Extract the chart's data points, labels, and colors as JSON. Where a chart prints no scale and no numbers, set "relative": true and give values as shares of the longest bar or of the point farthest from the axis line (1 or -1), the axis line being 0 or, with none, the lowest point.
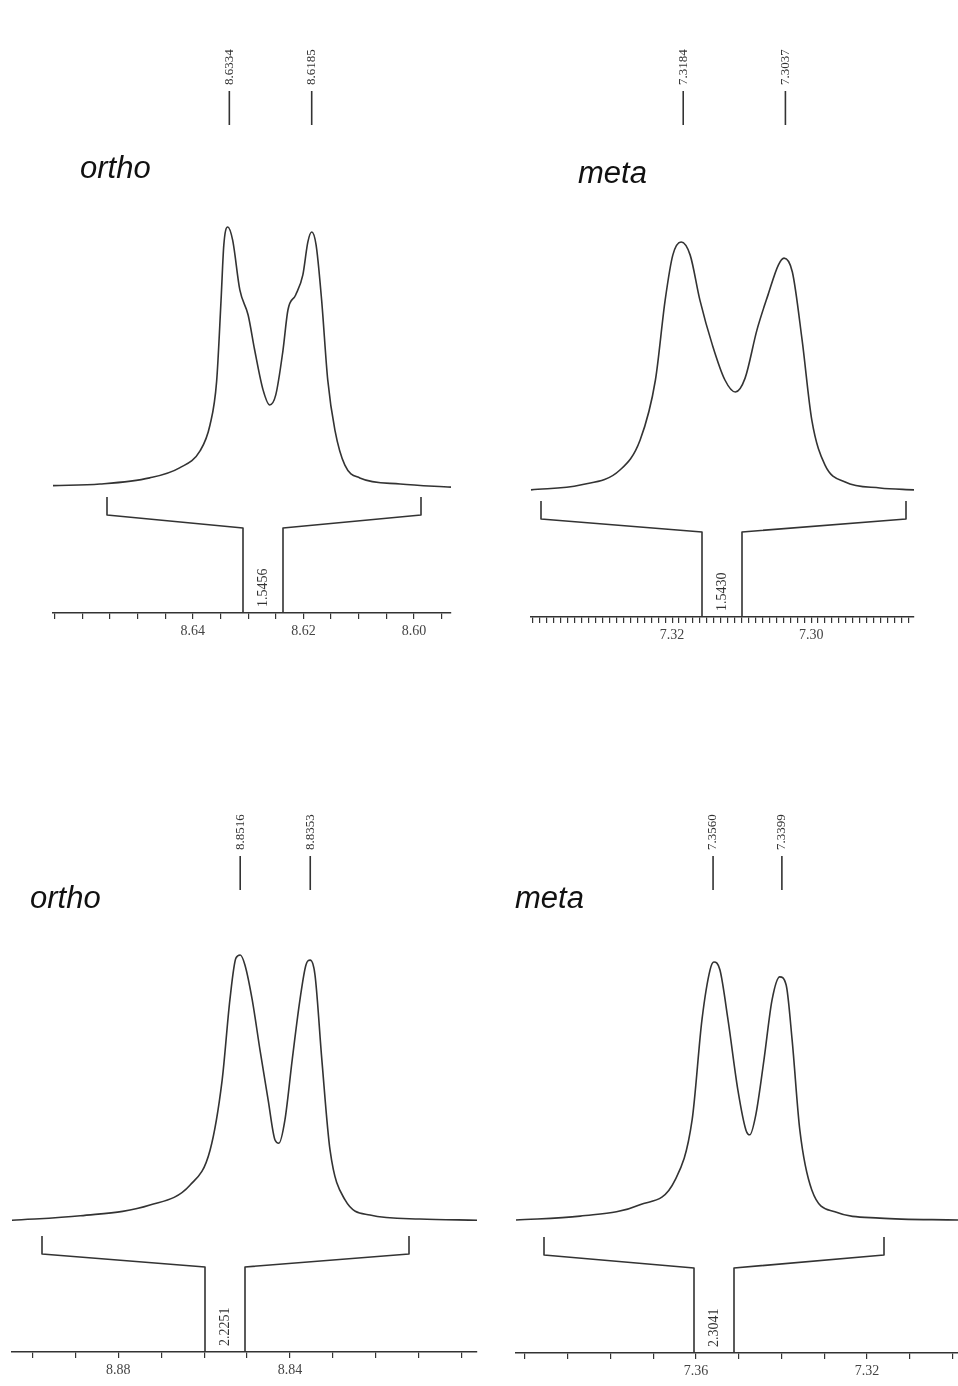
{
  "chart_data": [
    {
      "type": "line",
      "title": "ortho",
      "relative": true,
      "legend": false,
      "grid": false,
      "marker": "none",
      "series": [
        {
          "color": "#333333",
          "x": [
            8.6653,
            8.6568,
            8.6478,
            8.6424,
            8.6387,
            8.6369,
            8.6357,
            8.6349,
            8.6344,
            8.6337,
            8.6328,
            8.6315,
            8.63,
            8.6288,
            8.6273,
            8.6261,
            8.625,
            8.6237,
            8.6228,
            8.6214,
            8.6201,
            8.6192,
            8.6185,
            8.6177,
            8.6167,
            8.6156,
            8.6143,
            8.6125,
            8.6098,
            8.6025,
            8.5933
          ],
          "values": [
            0.33,
            0.334,
            0.35,
            0.376,
            0.42,
            0.487,
            0.6,
            0.81,
            0.953,
            1.0,
            0.966,
            0.837,
            0.772,
            0.68,
            0.578,
            0.539,
            0.565,
            0.68,
            0.785,
            0.824,
            0.876,
            0.961,
            0.987,
            0.953,
            0.81,
            0.604,
            0.474,
            0.383,
            0.35,
            0.334,
            0.326
          ]
        }
      ],
      "xlim": [
        8.6653,
        8.5933
      ],
      "xticks": [
        {
          "value": 8.665,
          "label": null
        },
        {
          "value": 8.66,
          "label": null
        },
        {
          "value": 8.655,
          "label": null
        },
        {
          "value": 8.65,
          "label": null
        },
        {
          "value": 8.645,
          "label": null
        },
        8.64,
        {
          "value": 8.635,
          "label": null
        },
        {
          "value": 8.63,
          "label": null
        },
        {
          "value": 8.625,
          "label": null
        },
        8.62,
        {
          "value": 8.615,
          "label": null
        },
        {
          "value": 8.61,
          "label": null
        },
        {
          "value": 8.605,
          "label": null
        },
        {
          "value": 8.6,
          "label": "8.60"
        },
        {
          "value": 8.595,
          "label": null
        }
      ],
      "annotations": [
        {
          "text": "8.6334",
          "x": 8.6334
        },
        {
          "text": "8.6185",
          "x": 8.6185
        },
        "1.5456"
      ]
    },
    {
      "type": "line",
      "title": "meta",
      "relative": true,
      "legend": false,
      "grid": false,
      "marker": "none",
      "series": [
        {
          "color": "#333333",
          "x": [
            7.3403,
            7.3332,
            7.3275,
            7.3246,
            7.3224,
            7.321,
            7.3199,
            7.3187,
            7.3174,
            7.316,
            7.3142,
            7.3124,
            7.3109,
            7.3095,
            7.3078,
            7.3062,
            7.3047,
            7.3039,
            7.3027,
            7.3013,
            7.2999,
            7.298,
            7.2951,
            7.2901,
            7.2852
          ],
          "values": [
            0.339,
            0.352,
            0.392,
            0.472,
            0.632,
            0.845,
            0.965,
            1.0,
            0.965,
            0.845,
            0.725,
            0.632,
            0.6,
            0.637,
            0.765,
            0.859,
            0.939,
            0.957,
            0.92,
            0.739,
            0.525,
            0.405,
            0.36,
            0.344,
            0.339
          ]
        }
      ],
      "xlim": [
        7.3403,
        7.2852
      ],
      "xticks": [
        {
          "value": 7.34,
          "label": null
        },
        {
          "value": 7.339,
          "label": null
        },
        {
          "value": 7.338,
          "label": null
        },
        {
          "value": 7.337,
          "label": null
        },
        {
          "value": 7.336,
          "label": null
        },
        {
          "value": 7.335,
          "label": null
        },
        {
          "value": 7.334,
          "label": null
        },
        {
          "value": 7.333,
          "label": null
        },
        {
          "value": 7.332,
          "label": null
        },
        {
          "value": 7.331,
          "label": null
        },
        {
          "value": 7.33,
          "label": null
        },
        {
          "value": 7.329,
          "label": null
        },
        {
          "value": 7.328,
          "label": null
        },
        {
          "value": 7.327,
          "label": null
        },
        {
          "value": 7.326,
          "label": null
        },
        {
          "value": 7.325,
          "label": null
        },
        {
          "value": 7.324,
          "label": null
        },
        {
          "value": 7.323,
          "label": null
        },
        {
          "value": 7.322,
          "label": null
        },
        {
          "value": 7.321,
          "label": null
        },
        7.32,
        {
          "value": 7.319,
          "label": null
        },
        {
          "value": 7.318,
          "label": null
        },
        {
          "value": 7.317,
          "label": null
        },
        {
          "value": 7.316,
          "label": null
        },
        {
          "value": 7.315,
          "label": null
        },
        {
          "value": 7.314,
          "label": null
        },
        {
          "value": 7.313,
          "label": null
        },
        {
          "value": 7.312,
          "label": null
        },
        {
          "value": 7.311,
          "label": null
        },
        {
          "value": 7.31,
          "label": null
        },
        {
          "value": 7.309,
          "label": null
        },
        {
          "value": 7.308,
          "label": null
        },
        {
          "value": 7.307,
          "label": null
        },
        {
          "value": 7.306,
          "label": null
        },
        {
          "value": 7.305,
          "label": null
        },
        {
          "value": 7.304,
          "label": null
        },
        {
          "value": 7.303,
          "label": null
        },
        {
          "value": 7.302,
          "label": null
        },
        {
          "value": 7.301,
          "label": null
        },
        {
          "value": 7.3,
          "label": "7.30"
        },
        {
          "value": 7.299,
          "label": null
        },
        {
          "value": 7.298,
          "label": null
        },
        {
          "value": 7.297,
          "label": null
        },
        {
          "value": 7.296,
          "label": null
        },
        {
          "value": 7.295,
          "label": null
        },
        {
          "value": 7.294,
          "label": null
        },
        {
          "value": 7.293,
          "label": null
        },
        {
          "value": 7.292,
          "label": null
        },
        {
          "value": 7.291,
          "label": null
        },
        {
          "value": 7.29,
          "label": null
        },
        {
          "value": 7.289,
          "label": null
        },
        {
          "value": 7.288,
          "label": null
        },
        {
          "value": 7.287,
          "label": null
        },
        {
          "value": 7.286,
          "label": null
        }
      ],
      "annotations": [
        {
          "text": "7.3184",
          "x": 7.3184
        },
        {
          "text": "7.3037",
          "x": 7.3037
        },
        "1.5430"
      ]
    },
    {
      "type": "line",
      "title": "ortho",
      "relative": true,
      "legend": false,
      "grid": false,
      "marker": "none",
      "series": [
        {
          "color": "#333333",
          "x": [
            8.9047,
            8.8888,
            8.8726,
            8.8633,
            8.8586,
            8.8558,
            8.854,
            8.8526,
            8.8516,
            8.8505,
            8.8488,
            8.847,
            8.8451,
            8.8435,
            8.8426,
            8.8412,
            8.8395,
            8.8377,
            8.8363,
            8.8353,
            8.8342,
            8.8326,
            8.8307,
            8.8272,
            8.8214,
            8.8098,
            8.7965
          ],
          "values": [
            0.332,
            0.343,
            0.37,
            0.42,
            0.509,
            0.685,
            0.887,
            0.992,
            1.0,
            0.975,
            0.887,
            0.761,
            0.635,
            0.534,
            0.526,
            0.584,
            0.736,
            0.887,
            0.975,
            0.987,
            0.95,
            0.736,
            0.509,
            0.383,
            0.345,
            0.335,
            0.332
          ]
        }
      ],
      "xlim": [
        8.9047,
        8.7965
      ],
      "xticks": [
        {
          "value": 8.9,
          "label": null
        },
        {
          "value": 8.89,
          "label": null
        },
        8.88,
        {
          "value": 8.87,
          "label": null
        },
        {
          "value": 8.86,
          "label": null
        },
        {
          "value": 8.85,
          "label": null
        },
        8.84,
        {
          "value": 8.83,
          "label": null
        },
        {
          "value": 8.82,
          "label": null
        },
        {
          "value": 8.81,
          "label": null
        },
        {
          "value": 8.8,
          "label": null
        }
      ],
      "annotations": [
        {
          "text": "8.8516",
          "x": 8.8516
        },
        {
          "text": "8.8353",
          "x": 8.8353
        },
        "2.2251"
      ]
    },
    {
      "type": "line",
      "title": "meta",
      "relative": true,
      "legend": false,
      "grid": false,
      "marker": "none",
      "series": [
        {
          "color": "#333333",
          "x": [
            7.4021,
            7.3871,
            7.3731,
            7.3649,
            7.3609,
            7.3586,
            7.3567,
            7.3558,
            7.3544,
            7.3525,
            7.3502,
            7.3483,
            7.3474,
            7.346,
            7.3441,
            7.3422,
            7.3404,
            7.3389,
            7.3375,
            7.3357,
            7.3329,
            7.3275,
            7.317,
            7.2987
          ],
          "values": [
            0.34,
            0.35,
            0.379,
            0.442,
            0.596,
            0.852,
            0.98,
            1.0,
            0.98,
            0.852,
            0.673,
            0.57,
            0.558,
            0.609,
            0.749,
            0.903,
            0.962,
            0.941,
            0.8,
            0.57,
            0.417,
            0.361,
            0.345,
            0.34
          ]
        }
      ],
      "xlim": [
        7.4021,
        7.2987
      ],
      "xticks": [
        {
          "value": 7.4,
          "label": null
        },
        {
          "value": 7.39,
          "label": null
        },
        {
          "value": 7.38,
          "label": null
        },
        {
          "value": 7.37,
          "label": null
        },
        7.36,
        {
          "value": 7.35,
          "label": null
        },
        {
          "value": 7.34,
          "label": null
        },
        {
          "value": 7.33,
          "label": null
        },
        7.32,
        {
          "value": 7.31,
          "label": null
        },
        {
          "value": 7.3,
          "label": null
        }
      ],
      "annotations": [
        {
          "text": "7.3560",
          "x": 7.356
        },
        {
          "text": "7.3399",
          "x": 7.3399
        },
        "2.3041"
      ]
    }
  ]
}
